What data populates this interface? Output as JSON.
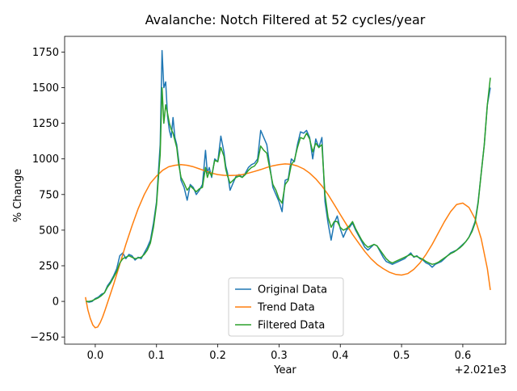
{
  "chart_data": {
    "type": "line",
    "title": "Avalanche: Notch Filtered at 52 cycles/year",
    "xlabel": "Year",
    "ylabel": "% Change",
    "x_offset_label": "+2.021e3",
    "xlim": [
      -0.05,
      0.67
    ],
    "ylim": [
      -300,
      1860
    ],
    "xticks": [
      0.0,
      0.1,
      0.2,
      0.3,
      0.4,
      0.5,
      0.6
    ],
    "xtick_labels": [
      "0.0",
      "0.1",
      "0.2",
      "0.3",
      "0.4",
      "0.5",
      "0.6"
    ],
    "yticks": [
      -250,
      0,
      250,
      500,
      750,
      1000,
      1250,
      1500,
      1750
    ],
    "ytick_labels": [
      "−250",
      "0",
      "250",
      "500",
      "750",
      "1000",
      "1250",
      "1500",
      "1750"
    ],
    "grid": false,
    "legend_position": "lower-center",
    "series": [
      {
        "name": "Original Data",
        "color": "#1f77b4",
        "x": [
          -0.015,
          -0.01,
          -0.005,
          0.0,
          0.005,
          0.01,
          0.015,
          0.02,
          0.025,
          0.03,
          0.035,
          0.04,
          0.045,
          0.05,
          0.055,
          0.06,
          0.065,
          0.07,
          0.075,
          0.08,
          0.085,
          0.09,
          0.095,
          0.1,
          0.103,
          0.106,
          0.109,
          0.112,
          0.115,
          0.118,
          0.121,
          0.124,
          0.127,
          0.13,
          0.133,
          0.136,
          0.14,
          0.145,
          0.15,
          0.155,
          0.16,
          0.165,
          0.17,
          0.175,
          0.18,
          0.183,
          0.186,
          0.19,
          0.195,
          0.2,
          0.205,
          0.21,
          0.213,
          0.216,
          0.22,
          0.225,
          0.23,
          0.235,
          0.24,
          0.245,
          0.25,
          0.255,
          0.26,
          0.265,
          0.27,
          0.275,
          0.28,
          0.285,
          0.29,
          0.295,
          0.3,
          0.305,
          0.31,
          0.315,
          0.32,
          0.325,
          0.33,
          0.335,
          0.34,
          0.345,
          0.35,
          0.355,
          0.36,
          0.365,
          0.37,
          0.375,
          0.38,
          0.385,
          0.39,
          0.395,
          0.4,
          0.405,
          0.41,
          0.415,
          0.42,
          0.425,
          0.43,
          0.435,
          0.44,
          0.445,
          0.45,
          0.455,
          0.46,
          0.465,
          0.47,
          0.475,
          0.48,
          0.485,
          0.49,
          0.495,
          0.5,
          0.505,
          0.51,
          0.515,
          0.52,
          0.525,
          0.53,
          0.535,
          0.54,
          0.545,
          0.55,
          0.555,
          0.56,
          0.565,
          0.57,
          0.575,
          0.58,
          0.585,
          0.59,
          0.595,
          0.6,
          0.605,
          0.61,
          0.615,
          0.62,
          0.625,
          0.63,
          0.635,
          0.64,
          0.645
        ],
        "y": [
          0,
          -5,
          0,
          20,
          30,
          50,
          60,
          110,
          140,
          180,
          230,
          320,
          340,
          300,
          330,
          320,
          290,
          310,
          300,
          340,
          380,
          430,
          550,
          700,
          900,
          1100,
          1760,
          1500,
          1540,
          1300,
          1200,
          1150,
          1290,
          1150,
          1100,
          1000,
          850,
          800,
          710,
          820,
          800,
          750,
          780,
          820,
          1060,
          900,
          940,
          870,
          1000,
          980,
          1160,
          1050,
          950,
          900,
          780,
          830,
          880,
          890,
          870,
          900,
          940,
          960,
          970,
          1000,
          1200,
          1150,
          1100,
          950,
          800,
          750,
          700,
          630,
          850,
          860,
          1000,
          980,
          1100,
          1190,
          1180,
          1200,
          1150,
          1000,
          1140,
          1080,
          1150,
          700,
          550,
          430,
          550,
          600,
          510,
          450,
          500,
          520,
          550,
          500,
          460,
          420,
          380,
          360,
          380,
          400,
          390,
          350,
          310,
          280,
          270,
          260,
          270,
          280,
          290,
          300,
          320,
          340,
          310,
          320,
          300,
          290,
          270,
          260,
          240,
          260,
          270,
          280,
          300,
          320,
          340,
          350,
          360,
          380,
          400,
          420,
          450,
          500,
          560,
          700,
          900,
          1100,
          1380,
          1500
        ],
        "draw_markers": false
      },
      {
        "name": "Trend Data",
        "color": "#ff7f0e",
        "x": [
          -0.016,
          -0.012,
          -0.008,
          -0.004,
          0.0,
          0.004,
          0.008,
          0.012,
          0.016,
          0.02,
          0.03,
          0.04,
          0.05,
          0.06,
          0.07,
          0.08,
          0.09,
          0.1,
          0.11,
          0.12,
          0.13,
          0.14,
          0.15,
          0.16,
          0.17,
          0.18,
          0.19,
          0.2,
          0.21,
          0.22,
          0.23,
          0.24,
          0.25,
          0.26,
          0.27,
          0.28,
          0.29,
          0.3,
          0.31,
          0.32,
          0.33,
          0.34,
          0.35,
          0.36,
          0.37,
          0.38,
          0.39,
          0.4,
          0.41,
          0.42,
          0.43,
          0.44,
          0.45,
          0.46,
          0.47,
          0.48,
          0.49,
          0.5,
          0.51,
          0.52,
          0.53,
          0.54,
          0.55,
          0.56,
          0.57,
          0.58,
          0.59,
          0.6,
          0.61,
          0.62,
          0.63,
          0.64,
          0.645
        ],
        "y": [
          30,
          -60,
          -120,
          -165,
          -185,
          -180,
          -150,
          -110,
          -60,
          -10,
          120,
          260,
          400,
          530,
          650,
          750,
          830,
          880,
          920,
          945,
          955,
          960,
          955,
          945,
          930,
          915,
          900,
          890,
          885,
          883,
          885,
          890,
          900,
          912,
          925,
          940,
          952,
          960,
          965,
          962,
          950,
          930,
          900,
          860,
          810,
          750,
          680,
          610,
          540,
          470,
          410,
          350,
          300,
          260,
          230,
          205,
          190,
          185,
          195,
          225,
          270,
          330,
          400,
          480,
          560,
          630,
          680,
          690,
          660,
          580,
          440,
          230,
          80
        ],
        "draw_markers": false
      },
      {
        "name": "Filtered Data",
        "color": "#2ca02c",
        "x": [
          -0.015,
          -0.01,
          -0.005,
          0.0,
          0.005,
          0.01,
          0.015,
          0.02,
          0.025,
          0.03,
          0.035,
          0.04,
          0.045,
          0.05,
          0.055,
          0.06,
          0.065,
          0.07,
          0.075,
          0.08,
          0.085,
          0.09,
          0.095,
          0.1,
          0.103,
          0.106,
          0.109,
          0.112,
          0.115,
          0.118,
          0.121,
          0.124,
          0.127,
          0.13,
          0.133,
          0.136,
          0.14,
          0.145,
          0.15,
          0.155,
          0.16,
          0.165,
          0.17,
          0.175,
          0.18,
          0.183,
          0.186,
          0.19,
          0.195,
          0.2,
          0.205,
          0.21,
          0.213,
          0.216,
          0.22,
          0.225,
          0.23,
          0.235,
          0.24,
          0.245,
          0.25,
          0.255,
          0.26,
          0.265,
          0.27,
          0.275,
          0.28,
          0.285,
          0.29,
          0.295,
          0.3,
          0.305,
          0.31,
          0.315,
          0.32,
          0.325,
          0.33,
          0.335,
          0.34,
          0.345,
          0.35,
          0.355,
          0.36,
          0.365,
          0.37,
          0.375,
          0.38,
          0.385,
          0.39,
          0.395,
          0.4,
          0.405,
          0.41,
          0.415,
          0.42,
          0.425,
          0.43,
          0.435,
          0.44,
          0.445,
          0.45,
          0.455,
          0.46,
          0.465,
          0.47,
          0.475,
          0.48,
          0.485,
          0.49,
          0.495,
          0.5,
          0.505,
          0.51,
          0.515,
          0.52,
          0.525,
          0.53,
          0.535,
          0.54,
          0.545,
          0.55,
          0.555,
          0.56,
          0.565,
          0.57,
          0.575,
          0.58,
          0.585,
          0.59,
          0.595,
          0.6,
          0.605,
          0.61,
          0.615,
          0.62,
          0.625,
          0.63,
          0.635,
          0.64,
          0.645
        ],
        "y": [
          0,
          0,
          5,
          15,
          25,
          40,
          60,
          100,
          130,
          170,
          210,
          270,
          300,
          310,
          320,
          310,
          300,
          305,
          310,
          330,
          360,
          410,
          520,
          680,
          860,
          1030,
          1500,
          1250,
          1380,
          1320,
          1250,
          1210,
          1180,
          1130,
          1080,
          970,
          870,
          830,
          780,
          810,
          790,
          770,
          790,
          800,
          940,
          870,
          910,
          880,
          990,
          980,
          1080,
          1020,
          930,
          880,
          830,
          850,
          870,
          880,
          870,
          890,
          920,
          940,
          950,
          980,
          1090,
          1060,
          1040,
          930,
          820,
          780,
          720,
          690,
          820,
          850,
          960,
          990,
          1080,
          1150,
          1140,
          1180,
          1140,
          1050,
          1110,
          1080,
          1100,
          750,
          590,
          520,
          560,
          560,
          520,
          500,
          510,
          530,
          560,
          510,
          470,
          430,
          400,
          380,
          390,
          400,
          390,
          360,
          330,
          300,
          280,
          270,
          280,
          290,
          300,
          310,
          320,
          330,
          315,
          315,
          305,
          295,
          280,
          270,
          260,
          265,
          275,
          290,
          305,
          320,
          335,
          345,
          360,
          375,
          395,
          420,
          450,
          490,
          550,
          690,
          900,
          1100,
          1380,
          1570
        ],
        "draw_markers": false
      }
    ]
  }
}
